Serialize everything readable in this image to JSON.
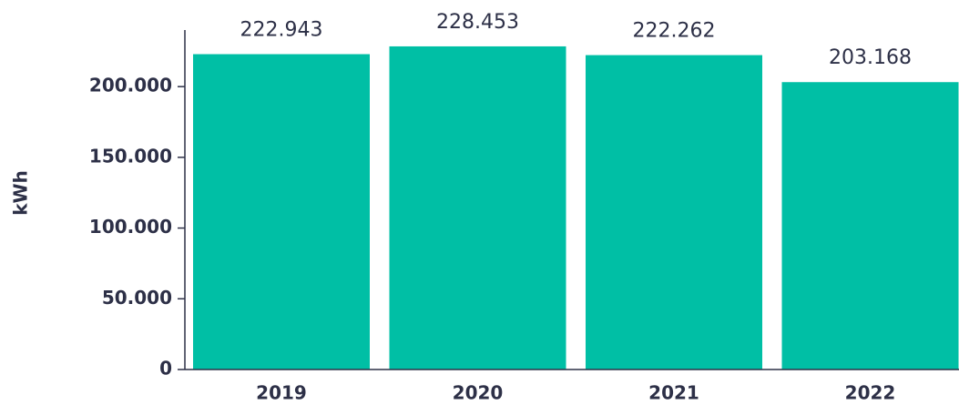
{
  "chart_data": {
    "type": "bar",
    "ylabel": "kWh",
    "categories": [
      "2019",
      "2020",
      "2021",
      "2022"
    ],
    "values": [
      222943,
      228453,
      222262,
      203168
    ],
    "value_labels": [
      "222.943",
      "228.453",
      "222.262",
      "203.168"
    ],
    "color": "#00bfa5",
    "ylim": [
      0,
      240000
    ],
    "yticks": [
      0,
      {
        "value": 50000,
        "label": "50.000"
      },
      {
        "value": 100000,
        "label": "100.000"
      },
      {
        "value": 150000,
        "label": "150.000"
      },
      {
        "value": 200000,
        "label": "200.000"
      }
    ]
  }
}
